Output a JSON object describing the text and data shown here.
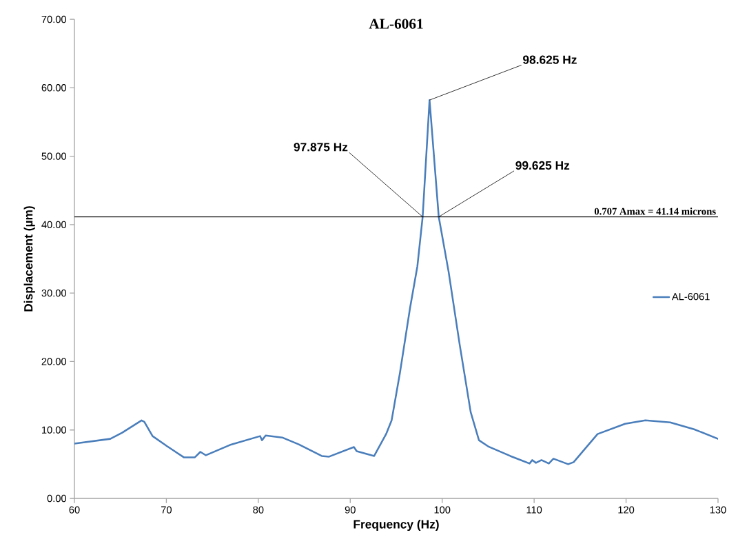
{
  "chart_data": {
    "type": "line",
    "title": "AL-6061",
    "xlabel": "Frequency (Hz)",
    "ylabel": "Displacement (µm)",
    "xlim": [
      60,
      130
    ],
    "xticks": [
      60,
      70,
      80,
      90,
      100,
      110,
      120,
      130
    ],
    "ylim": [
      0,
      70
    ],
    "yticks": [
      {
        "value": 0,
        "label": "0.00"
      },
      {
        "value": 10,
        "label": "10.00"
      },
      {
        "value": 20,
        "label": "20.00"
      },
      {
        "value": 30,
        "label": "30.00"
      },
      {
        "value": 40,
        "label": "40.00"
      },
      {
        "value": 50,
        "label": "50.00"
      },
      {
        "value": 60,
        "label": "60.00"
      },
      {
        "value": 70,
        "label": "70.00"
      }
    ],
    "grid": false,
    "legend": "right",
    "marker": "none",
    "line_style": "solid",
    "series": [
      {
        "name": "AL-6061",
        "color": "#4a7ebb",
        "x": [
          60,
          63.9,
          65.2,
          67.3,
          67.6,
          68.5,
          70.1,
          71.9,
          73.1,
          73.7,
          74.3,
          76.9,
          80.2,
          80.4,
          80.8,
          82.6,
          84.4,
          86.9,
          87.7,
          90.4,
          90.7,
          92.6,
          93.9,
          94.5,
          95.4,
          96.5,
          97.3,
          97.875,
          98.625,
          99.625,
          100.7,
          101.9,
          103.1,
          104.0,
          105.0,
          107.4,
          109.5,
          109.8,
          110.2,
          110.8,
          111.6,
          112.1,
          113.7,
          114.3,
          116.9,
          119.9,
          122.1,
          124.8,
          127.4,
          130
        ],
        "values": [
          8.0,
          8.7,
          9.6,
          11.4,
          11.2,
          9.1,
          7.6,
          6.0,
          6.0,
          6.8,
          6.3,
          7.8,
          9.1,
          8.5,
          9.2,
          8.9,
          7.9,
          6.2,
          6.1,
          7.5,
          6.9,
          6.2,
          9.4,
          11.4,
          18.3,
          27.8,
          33.9,
          41.14,
          58.2,
          41.14,
          33.1,
          22.5,
          12.6,
          8.5,
          7.6,
          6.2,
          5.1,
          5.6,
          5.2,
          5.6,
          5.1,
          5.8,
          5.0,
          5.3,
          9.4,
          10.9,
          11.4,
          11.1,
          10.1,
          8.7
        ]
      }
    ],
    "ref_lines": [
      {
        "axis": "y",
        "value": 41.14,
        "label": "0.707 Amax = 41.14 microns",
        "color": "#000000"
      }
    ],
    "annotations": [
      {
        "text": "97.875 Hz",
        "x": 97.875,
        "y": 41.14
      },
      {
        "text": "98.625 Hz",
        "x": 98.625,
        "y": 58.2
      },
      {
        "text": "99.625 Hz",
        "x": 99.625,
        "y": 41.14
      }
    ]
  }
}
